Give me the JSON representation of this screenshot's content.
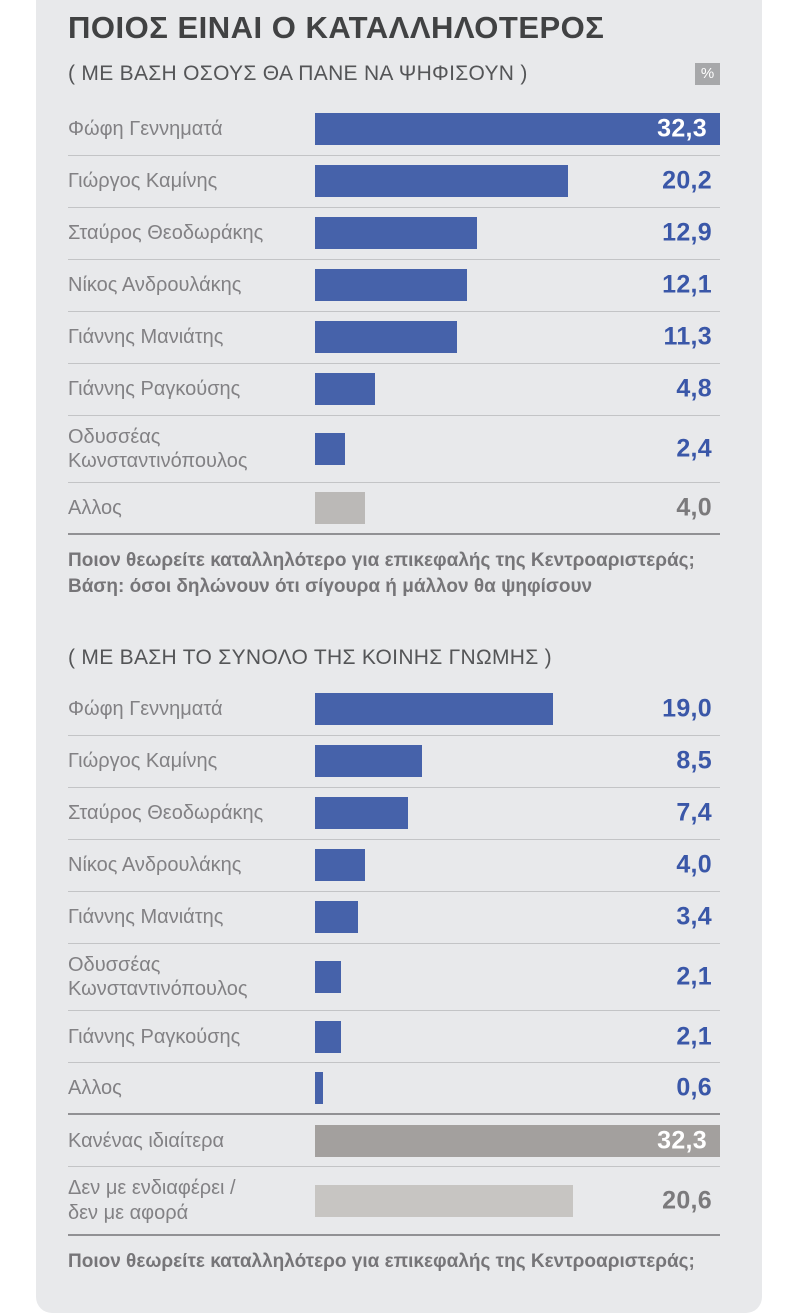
{
  "title": "ΠΟΙΟΣ ΕΙΝΑΙ Ο ΚΑΤΑΛΛΗΛΟΤΕΡΟΣ",
  "percent_badge": "%",
  "colors": {
    "card_bg": "#e8e9eb",
    "bar_blue": "#4662aa",
    "bar_gray": "#bbb9b7",
    "bar_dark_gray": "#a3a09e",
    "bar_light_gray": "#c7c5c2",
    "value_blue": "#3a57a8",
    "value_gray": "#7b7a7c",
    "value_white": "#ffffff"
  },
  "chart_data": [
    {
      "type": "bar",
      "orientation": "horizontal",
      "title": "( ΜΕ ΒΑΣΗ ΟΣΟΥΣ ΘΑ ΠΑΝΕ ΝΑ ΨΗΦΙΣΟΥΝ )",
      "unit": "%",
      "xlim": [
        0,
        32.3
      ],
      "grid": false,
      "bars": [
        {
          "label": "Φώφη Γεννηματά",
          "value": 32.3,
          "display": "32,3",
          "style": "blue",
          "value_inside": true
        },
        {
          "label": "Γιώργος Καμίνης",
          "value": 20.2,
          "display": "20,2",
          "style": "blue"
        },
        {
          "label": "Σταύρος Θεοδωράκης",
          "value": 12.9,
          "display": "12,9",
          "style": "blue"
        },
        {
          "label": "Νίκος Ανδρουλάκης",
          "value": 12.1,
          "display": "12,1",
          "style": "blue"
        },
        {
          "label": "Γιάννης Μανιάτης",
          "value": 11.3,
          "display": "11,3",
          "style": "blue"
        },
        {
          "label": "Γιάννης Ραγκούσης",
          "value": 4.8,
          "display": "4,8",
          "style": "blue"
        },
        {
          "label": "Οδυσσέας\nΚωνσταντινόπουλος",
          "value": 2.4,
          "display": "2,4",
          "style": "blue"
        },
        {
          "label": "Αλλος",
          "value": 4.0,
          "display": "4,0",
          "style": "gray",
          "strong_separator": true
        }
      ],
      "footnote": "Ποιον θεωρείτε καταλληλότερο για επικεφαλής της Κεντροαριστεράς;\nΒάση: όσοι δηλώνουν ότι σίγουρα ή μάλλον θα ψηφίσουν"
    },
    {
      "type": "bar",
      "orientation": "horizontal",
      "title": "( ΜΕ ΒΑΣΗ ΤΟ ΣΥΝΟΛΟ ΤΗΣ ΚΟΙΝΗΣ ΓΝΩΜΗΣ )",
      "unit": "%",
      "xlim": [
        0,
        32.3
      ],
      "grid": false,
      "bars": [
        {
          "label": "Φώφη Γεννηματά",
          "value": 19.0,
          "display": "19,0",
          "style": "blue"
        },
        {
          "label": "Γιώργος Καμίνης",
          "value": 8.5,
          "display": "8,5",
          "style": "blue"
        },
        {
          "label": "Σταύρος Θεοδωράκης",
          "value": 7.4,
          "display": "7,4",
          "style": "blue"
        },
        {
          "label": "Νίκος Ανδρουλάκης",
          "value": 4.0,
          "display": "4,0",
          "style": "blue"
        },
        {
          "label": "Γιάννης Μανιάτης",
          "value": 3.4,
          "display": "3,4",
          "style": "blue"
        },
        {
          "label": "Οδυσσέας\nΚωνσταντινόπουλος",
          "value": 2.1,
          "display": "2,1",
          "style": "blue"
        },
        {
          "label": "Γιάννης Ραγκούσης",
          "value": 2.1,
          "display": "2,1",
          "style": "blue"
        },
        {
          "label": "Αλλος",
          "value": 0.6,
          "display": "0,6",
          "style": "blue",
          "strong_separator": true
        },
        {
          "label": "Κανένας ιδιαίτερα",
          "value": 32.3,
          "display": "32,3",
          "style": "darkgray",
          "value_inside": true
        },
        {
          "label": "Δεν με ενδιαφέρει /\nδεν με αφορά",
          "value": 20.6,
          "display": "20,6",
          "style": "lightgray",
          "strong_separator": true
        }
      ],
      "footnote": "Ποιον θεωρείτε καταλληλότερο για επικεφαλής της Κεντροαριστεράς;"
    }
  ]
}
